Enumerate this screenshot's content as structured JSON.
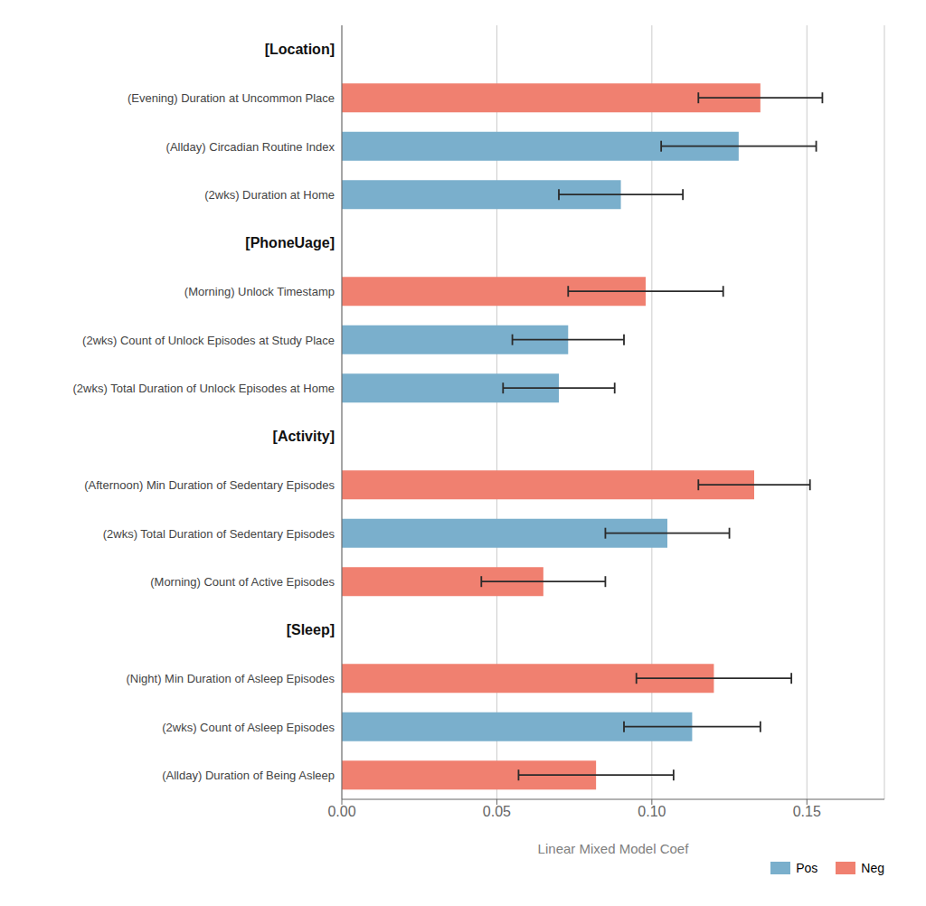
{
  "chart_data": {
    "type": "bar",
    "orientation": "horizontal",
    "stacked": false,
    "grid": true,
    "legend": "lower right",
    "xlabel": "Linear Mixed Model Coef",
    "categories": [
      "[Location]",
      "(Evening) Duration at Uncommon Place",
      "(Allday) Circadian Routine Index",
      "(2wks) Duration at Home",
      "[PhoneUage]",
      "(Morning) Unlock Timestamp",
      "(2wks) Count of Unlock Episodes at Study Place",
      "(2wks) Total Duration of Unlock Episodes at Home",
      "[Activity]",
      "(Afternoon) Min Duration of Sedentary Episodes",
      "(2wks) Total Duration of Sedentary Episodes",
      "(Morning) Count of Active Episodes",
      "[Sleep]",
      "(Night) Min Duration of Asleep Episodes",
      "(2wks) Count of Asleep Episodes",
      "(Allday) Duration of Being Asleep"
    ],
    "series": [
      {
        "name": "Pos",
        "color": "#7AAFCC",
        "values": [
          null,
          null,
          0.128,
          0.09,
          null,
          null,
          0.073,
          0.07,
          null,
          null,
          0.105,
          null,
          null,
          null,
          0.113,
          null
        ],
        "errors": [
          null,
          null,
          0.025,
          0.02,
          null,
          null,
          0.018,
          0.018,
          null,
          null,
          0.02,
          null,
          null,
          null,
          0.022,
          null
        ]
      },
      {
        "name": "Neg",
        "color": "#F08070",
        "values": [
          null,
          0.135,
          null,
          null,
          null,
          0.098,
          null,
          null,
          null,
          0.133,
          null,
          0.065,
          null,
          0.12,
          null,
          0.082
        ],
        "errors": [
          null,
          0.02,
          null,
          null,
          null,
          0.025,
          null,
          null,
          null,
          0.018,
          null,
          0.02,
          null,
          0.025,
          null,
          0.025
        ]
      }
    ],
    "xlim": [
      0.0,
      0.175
    ],
    "xticks": [
      {
        "value": 0.0,
        "label": "0.00"
      },
      {
        "value": 0.05,
        "label": "0.05"
      },
      {
        "value": 0.1,
        "label": "0.10"
      },
      {
        "value": 0.15,
        "label": "0.15"
      }
    ]
  }
}
